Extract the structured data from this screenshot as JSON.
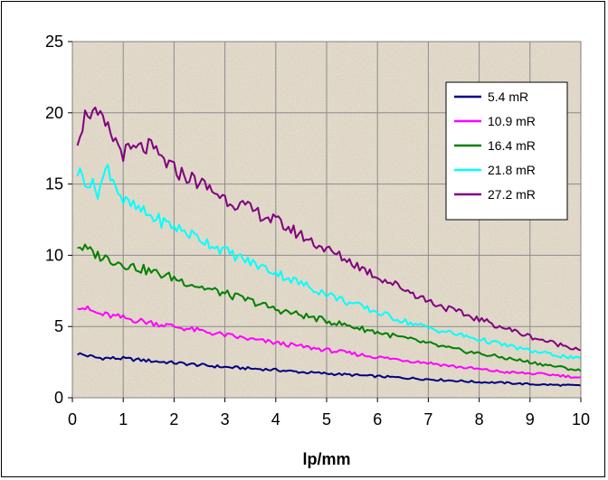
{
  "chart_data": {
    "type": "line",
    "title": "",
    "xlabel": "lp/mm",
    "ylabel": "",
    "xlim": [
      0,
      10
    ],
    "ylim": [
      0,
      25
    ],
    "x_ticks": [
      "0",
      "1",
      "2",
      "3",
      "4",
      "5",
      "6",
      "7",
      "8",
      "9",
      "10"
    ],
    "y_ticks": [
      "0",
      "5",
      "10",
      "15",
      "20",
      "25"
    ],
    "grid": true,
    "plot_background": "textured beige",
    "legend_position": "top-right",
    "series": [
      {
        "name": "5.4 mR",
        "color": "#000080",
        "x": [
          0.1,
          0.5,
          1.0,
          1.5,
          2.0,
          2.5,
          3.0,
          3.5,
          4.0,
          4.5,
          5.0,
          5.5,
          6.0,
          6.5,
          7.0,
          7.5,
          8.0,
          8.5,
          9.0,
          9.5,
          10.0
        ],
        "y": [
          3.1,
          2.8,
          2.75,
          2.6,
          2.45,
          2.3,
          2.15,
          2.05,
          1.95,
          1.8,
          1.7,
          1.6,
          1.5,
          1.4,
          1.3,
          1.2,
          1.1,
          1.05,
          0.95,
          0.9,
          0.85
        ]
      },
      {
        "name": "10.9 mR",
        "color": "#ff00ff",
        "x": [
          0.1,
          0.5,
          1.0,
          1.5,
          2.0,
          2.5,
          3.0,
          3.5,
          4.0,
          4.5,
          5.0,
          5.5,
          6.0,
          6.5,
          7.0,
          7.5,
          8.0,
          8.5,
          9.0,
          9.5,
          10.0
        ],
        "y": [
          6.5,
          5.9,
          5.6,
          5.3,
          5.0,
          4.7,
          4.4,
          4.1,
          3.85,
          3.6,
          3.35,
          3.1,
          2.85,
          2.65,
          2.45,
          2.2,
          2.0,
          1.8,
          1.7,
          1.6,
          1.4
        ]
      },
      {
        "name": "16.4 mR",
        "color": "#008000",
        "x": [
          0.1,
          0.5,
          1.0,
          1.5,
          2.0,
          2.5,
          3.0,
          3.5,
          4.0,
          4.5,
          5.0,
          5.5,
          6.0,
          6.5,
          7.0,
          7.5,
          8.0,
          8.5,
          9.0,
          9.5,
          10.0
        ],
        "y": [
          10.7,
          10.0,
          9.4,
          8.9,
          8.4,
          7.8,
          7.3,
          6.8,
          6.2,
          5.8,
          5.4,
          5.0,
          4.6,
          4.2,
          3.8,
          3.4,
          3.1,
          2.8,
          2.5,
          2.2,
          1.9
        ]
      },
      {
        "name": "21.8 mR",
        "color": "#00ffff",
        "x": [
          0.1,
          0.5,
          0.7,
          1.0,
          1.5,
          2.0,
          2.5,
          3.0,
          3.5,
          4.0,
          4.5,
          5.0,
          5.5,
          6.0,
          6.5,
          7.0,
          7.5,
          8.0,
          8.5,
          9.0,
          9.5,
          10.0
        ],
        "y": [
          15.9,
          14.5,
          16.2,
          13.8,
          12.8,
          12.0,
          11.2,
          10.3,
          9.5,
          8.8,
          8.0,
          7.3,
          6.6,
          6.0,
          5.4,
          4.9,
          4.5,
          4.1,
          3.7,
          3.3,
          3.0,
          2.7
        ]
      },
      {
        "name": "27.2 mR",
        "color": "#800080",
        "x": [
          0.1,
          0.3,
          0.6,
          1.0,
          1.5,
          2.0,
          2.5,
          3.0,
          3.5,
          4.0,
          4.5,
          5.0,
          5.5,
          6.0,
          6.5,
          7.0,
          7.5,
          8.0,
          8.5,
          9.0,
          9.5,
          10.0
        ],
        "y": [
          18.3,
          20.2,
          19.3,
          17.2,
          17.6,
          16.0,
          15.1,
          14.0,
          13.2,
          12.4,
          11.4,
          10.4,
          9.5,
          8.5,
          7.7,
          6.8,
          6.1,
          5.5,
          4.9,
          4.3,
          3.8,
          3.4
        ]
      }
    ]
  }
}
